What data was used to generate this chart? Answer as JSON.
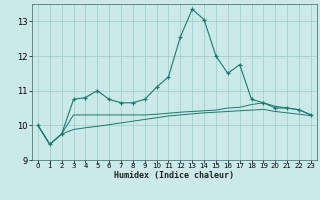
{
  "x": [
    0,
    1,
    2,
    3,
    4,
    5,
    6,
    7,
    8,
    9,
    10,
    11,
    12,
    13,
    14,
    15,
    16,
    17,
    18,
    19,
    20,
    21,
    22,
    23
  ],
  "line_jagged": [
    10.0,
    9.45,
    9.75,
    10.75,
    10.8,
    11.0,
    10.75,
    10.65,
    10.65,
    10.75,
    11.1,
    11.4,
    12.55,
    13.35,
    13.05,
    12.0,
    11.5,
    11.75,
    10.75,
    10.65,
    10.5,
    10.5,
    10.45,
    10.3
  ],
  "curve_upper": [
    10.0,
    9.45,
    9.75,
    10.3,
    10.3,
    10.3,
    10.3,
    10.3,
    10.3,
    10.3,
    10.32,
    10.35,
    10.38,
    10.4,
    10.42,
    10.44,
    10.5,
    10.52,
    10.6,
    10.65,
    10.55,
    10.5,
    10.45,
    10.3
  ],
  "curve_lower": [
    10.0,
    9.45,
    9.75,
    9.88,
    9.93,
    9.97,
    10.02,
    10.07,
    10.12,
    10.17,
    10.22,
    10.27,
    10.3,
    10.33,
    10.36,
    10.38,
    10.4,
    10.42,
    10.44,
    10.46,
    10.4,
    10.36,
    10.32,
    10.28
  ],
  "bg_color": "#cce9e9",
  "grid_color": "#99cccc",
  "line_color": "#1a7a6e",
  "xlabel": "Humidex (Indice chaleur)",
  "ylim": [
    9.0,
    13.5
  ],
  "xlim": [
    -0.5,
    23.5
  ],
  "yticks": [
    9,
    10,
    11,
    12,
    13
  ],
  "xticks": [
    0,
    1,
    2,
    3,
    4,
    5,
    6,
    7,
    8,
    9,
    10,
    11,
    12,
    13,
    14,
    15,
    16,
    17,
    18,
    19,
    20,
    21,
    22,
    23
  ]
}
